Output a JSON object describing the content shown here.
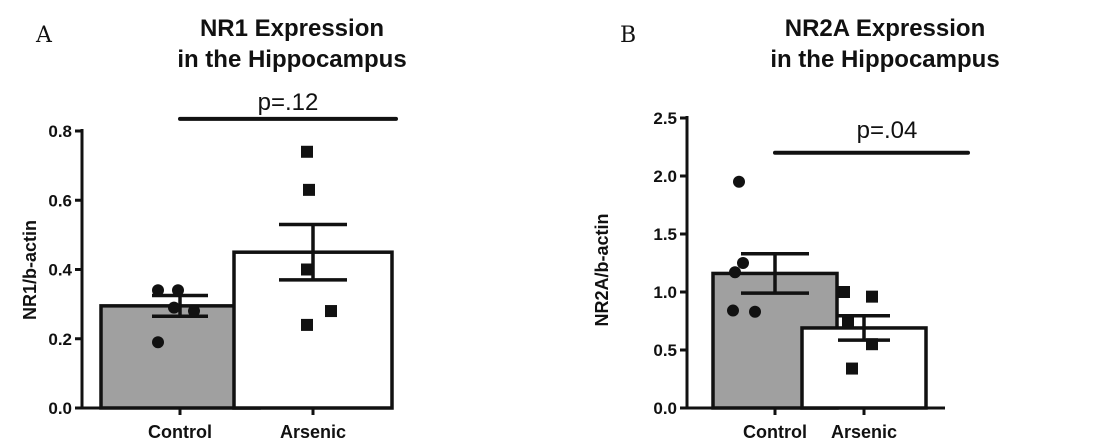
{
  "chart_data": [
    {
      "type": "bar",
      "panel_label": "A",
      "title": [
        "NR1 Expression",
        "in the Hippocampus"
      ],
      "ylabel": "NR1/b-actin",
      "ylim": [
        0,
        0.8
      ],
      "yticks": [
        0.0,
        0.2,
        0.4,
        0.6,
        0.8
      ],
      "ytick_labels": [
        "0.0",
        "0.2",
        "0.4",
        "0.6",
        "0.8"
      ],
      "categories": [
        "Control",
        "Arsenic"
      ],
      "values": [
        0.295,
        0.45
      ],
      "errors": [
        0.03,
        0.08
      ],
      "points": [
        [
          0.34,
          0.34,
          0.29,
          0.28,
          0.19
        ],
        [
          0.74,
          0.63,
          0.4,
          0.28,
          0.24
        ]
      ],
      "point_markers": [
        "circle",
        "square"
      ],
      "bar_colors": [
        "#a0a0a0",
        "#ffffff"
      ],
      "annotation": {
        "text": "p=.12",
        "bracket_y": 0.835
      }
    },
    {
      "type": "bar",
      "panel_label": "B",
      "title": [
        "NR2A Expression",
        "in the Hippocampus"
      ],
      "ylabel": "NR2A/b-actin",
      "ylim": [
        0,
        2.5
      ],
      "yticks": [
        0.0,
        0.5,
        1.0,
        1.5,
        2.0,
        2.5
      ],
      "ytick_labels": [
        "0.0",
        "0.5",
        "1.0",
        "1.5",
        "2.0",
        "2.5"
      ],
      "categories": [
        "Control",
        "Arsenic"
      ],
      "values": [
        1.16,
        0.69
      ],
      "errors": [
        0.17,
        0.105
      ],
      "points": [
        [
          1.95,
          1.25,
          1.17,
          0.84,
          0.83
        ],
        [
          1.0,
          0.96,
          0.73,
          0.55,
          0.34
        ]
      ],
      "point_markers": [
        "circle",
        "square"
      ],
      "bar_colors": [
        "#a0a0a0",
        "#ffffff"
      ],
      "annotation": {
        "text": "p=.04",
        "bracket_y": 2.2
      }
    }
  ]
}
